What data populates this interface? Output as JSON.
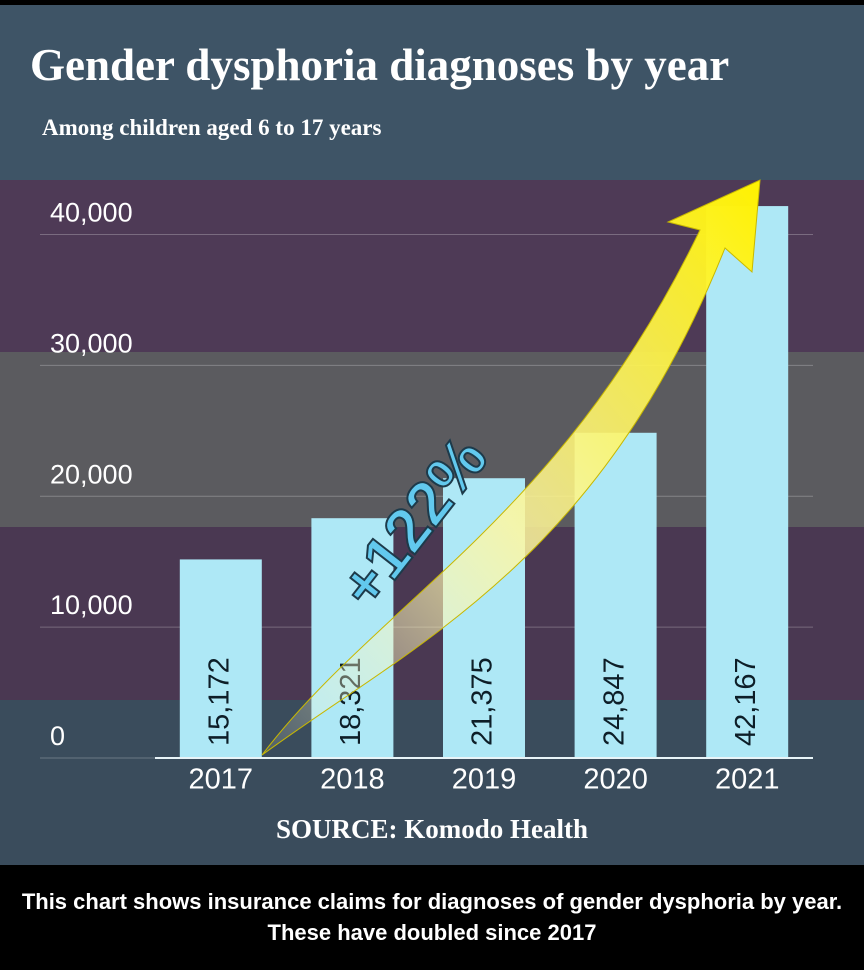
{
  "chart_data": {
    "type": "bar",
    "title": "Gender dysphoria diagnoses by year",
    "subtitle": "Among children aged 6 to 17 years",
    "categories": [
      "2017",
      "2018",
      "2019",
      "2020",
      "2021"
    ],
    "values": [
      15172,
      18321,
      21375,
      24847,
      42167
    ],
    "value_labels": [
      "15,172",
      "18,321",
      "21,375",
      "24,847",
      "42,167"
    ],
    "color": "#aee8f6",
    "ylim": [
      0,
      45000
    ],
    "yticks": [
      0,
      {
        "value": 10000,
        "label": "10,000"
      },
      {
        "value": 20000,
        "label": "20,000"
      },
      {
        "value": 30000,
        "label": "30,000"
      },
      {
        "value": 40000,
        "label": "40,000"
      }
    ],
    "grid": true,
    "annotation": "+122%",
    "source": "SOURCE: Komodo Health"
  },
  "caption": "This chart shows insurance claims for diagnoses of gender dysphoria by year. These have doubled since 2017"
}
